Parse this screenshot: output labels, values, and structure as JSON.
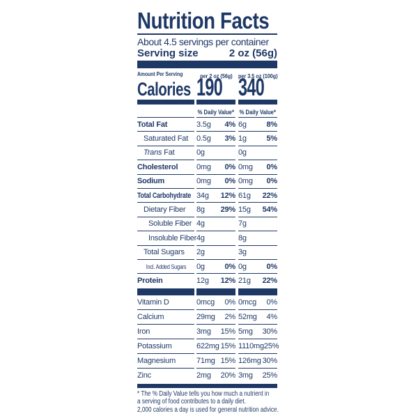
{
  "label": {
    "title": "Nutrition Facts",
    "servings_per_container": "About 4.5 servings per container",
    "serving_size_label": "Serving size",
    "serving_size_value": "2 oz (56g)",
    "amount_per_serving": "Amount Per Serving",
    "col1_header": "per 2 oz (56g)",
    "col2_header": "per 3.5 oz (100g)",
    "calories_label": "Calories",
    "calories_col1": "190",
    "calories_col2": "340",
    "daily_value_header": "% Daily Value*",
    "nutrient_rows": [
      {
        "label": "Total Fat",
        "v1": "3.5g",
        "p1": "4%",
        "v2": "6g",
        "p2": "8%"
      },
      {
        "label": "Saturated Fat",
        "v1": "0.5g",
        "p1": "3%",
        "v2": "1g",
        "p2": "5%"
      },
      {
        "label_italic": "Trans",
        "label": " Fat",
        "v1": "0g",
        "v2": "0g"
      },
      {
        "label": "Cholesterol",
        "v1": "0mg",
        "p1": "0%",
        "v2": "0mg",
        "p2": "0%"
      },
      {
        "label": "Sodium",
        "v1": "0mg",
        "p1": "0%",
        "v2": "0mg",
        "p2": "0%"
      },
      {
        "label": "Total Carbohydrate",
        "v1": "34g",
        "p1": "12%",
        "v2": "61g",
        "p2": "22%"
      },
      {
        "label": "Dietary Fiber",
        "v1": "8g",
        "p1": "29%",
        "v2": "15g",
        "p2": "54%"
      },
      {
        "label": "Soluble Fiber",
        "v1": "4g",
        "v2": "7g"
      },
      {
        "label": "Insoluble Fiber",
        "v1": "4g",
        "v2": "8g"
      },
      {
        "label": "Total Sugars",
        "v1": "2g",
        "v2": "3g"
      },
      {
        "label": "Incl. Added Sugars",
        "v1": "0g",
        "p1": "0%",
        "v2": "0g",
        "p2": "0%"
      },
      {
        "label": "Protein",
        "v1": "12g",
        "p1": "12%",
        "v2": "21g",
        "p2": "22%"
      }
    ],
    "vitamin_rows": [
      {
        "label": "Vitamin D",
        "v1": "0mcg",
        "p1": "0%",
        "v2": "0mcg",
        "p2": "0%"
      },
      {
        "label": "Calcium",
        "v1": "29mg",
        "p1": "2%",
        "v2": "52mg",
        "p2": "4%"
      },
      {
        "label": "Iron",
        "v1": "3mg",
        "p1": "15%",
        "v2": "5mg",
        "p2": "30%"
      },
      {
        "label": "Potassium",
        "v1": "622mg",
        "p1": "15%",
        "v2": "1110mg",
        "p2": "25%"
      },
      {
        "label": "Magnesium",
        "v1": "71mg",
        "p1": "15%",
        "v2": "126mg",
        "p2": "30%"
      },
      {
        "label": "Zinc",
        "v1": "2mg",
        "p1": "20%",
        "v2": "3mg",
        "p2": "25%"
      }
    ],
    "footnote_lines": [
      "* The % Daily Value tells you how much a nutrient in",
      "a serving of food contributes to a daily diet.",
      "2,000 calories a day is used for general nutrition advice."
    ],
    "colors": {
      "navy": "#1e3866",
      "background": "#ffffff"
    }
  }
}
